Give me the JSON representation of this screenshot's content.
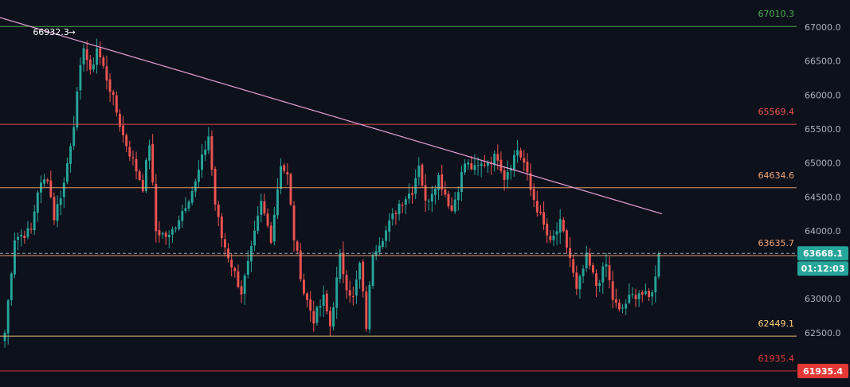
{
  "chart_data": {
    "type": "candlestick",
    "y_axis": {
      "position": "right",
      "range": [
        61700,
        67400
      ],
      "ticks": [
        "67000.0",
        "66500.0",
        "66000.0",
        "65500.0",
        "65000.0",
        "64500.0",
        "64000.0",
        "63500.0",
        "63000.0",
        "62500.0"
      ]
    },
    "horizontal_levels": [
      {
        "label": "67010.3",
        "value": 67010.3,
        "color": "#4caf50"
      },
      {
        "label": "65569.4",
        "value": 65569.4,
        "color": "#ef5350"
      },
      {
        "label": "64634.6",
        "value": 64634.6,
        "color": "#f4a574"
      },
      {
        "label": "63635.7",
        "value": 63635.7,
        "color": "#f4a574"
      },
      {
        "label": "62449.1",
        "value": 62449.1,
        "color": "#ffd27a"
      },
      {
        "label": "61935.4",
        "value": 61935.4,
        "color": "#e53935"
      }
    ],
    "trendline": {
      "color": "#e6a0d6",
      "from": {
        "bar": -2,
        "value": 67150
      },
      "to": {
        "bar": 200,
        "value": 64250
      }
    },
    "annotation": {
      "text": "66932.3",
      "arrow": "→",
      "value": 66932.3,
      "bar": 22
    },
    "current_price": {
      "value": 63668.1,
      "label": "63668.1",
      "countdown": "01:12:03",
      "color": "#26a69a"
    },
    "bottom_tag": {
      "value": 61935.4,
      "label": "61935.4",
      "color": "#e53935"
    },
    "colors": {
      "up": "#26a69a",
      "down": "#ef5350",
      "background": "#0d111c"
    },
    "bar_count": 200,
    "anchors": [
      [
        0,
        62500
      ],
      [
        3,
        63900
      ],
      [
        8,
        64000
      ],
      [
        10,
        64600
      ],
      [
        13,
        64800
      ],
      [
        15,
        64200
      ],
      [
        18,
        64700
      ],
      [
        21,
        65600
      ],
      [
        24,
        66750
      ],
      [
        26,
        66300
      ],
      [
        28,
        66700
      ],
      [
        32,
        66100
      ],
      [
        36,
        65400
      ],
      [
        40,
        64900
      ],
      [
        42,
        64650
      ],
      [
        44,
        65300
      ],
      [
        46,
        64000
      ],
      [
        50,
        63900
      ],
      [
        54,
        64300
      ],
      [
        58,
        64700
      ],
      [
        62,
        65400
      ],
      [
        64,
        64400
      ],
      [
        66,
        63900
      ],
      [
        69,
        63500
      ],
      [
        72,
        63100
      ],
      [
        75,
        63700
      ],
      [
        78,
        64400
      ],
      [
        81,
        63900
      ],
      [
        84,
        65000
      ],
      [
        86,
        64800
      ],
      [
        88,
        63900
      ],
      [
        91,
        63100
      ],
      [
        94,
        62700
      ],
      [
        97,
        63000
      ],
      [
        99,
        62600
      ],
      [
        102,
        63600
      ],
      [
        104,
        63200
      ],
      [
        106,
        63000
      ],
      [
        108,
        63500
      ],
      [
        110,
        62600
      ],
      [
        112,
        63700
      ],
      [
        116,
        64000
      ],
      [
        120,
        64400
      ],
      [
        124,
        64600
      ],
      [
        126,
        65000
      ],
      [
        128,
        64400
      ],
      [
        132,
        64800
      ],
      [
        136,
        64300
      ],
      [
        140,
        65000
      ],
      [
        143,
        64900
      ],
      [
        146,
        65000
      ],
      [
        150,
        65100
      ],
      [
        152,
        64800
      ],
      [
        156,
        65200
      ],
      [
        158,
        65000
      ],
      [
        160,
        64600
      ],
      [
        163,
        64200
      ],
      [
        166,
        63800
      ],
      [
        169,
        64100
      ],
      [
        172,
        63600
      ],
      [
        174,
        63100
      ],
      [
        177,
        63600
      ],
      [
        180,
        63200
      ],
      [
        183,
        63500
      ],
      [
        185,
        63000
      ],
      [
        187,
        62800
      ],
      [
        190,
        63000
      ],
      [
        193,
        63100
      ],
      [
        196,
        63000
      ],
      [
        198,
        63300
      ],
      [
        199,
        63668
      ]
    ]
  }
}
